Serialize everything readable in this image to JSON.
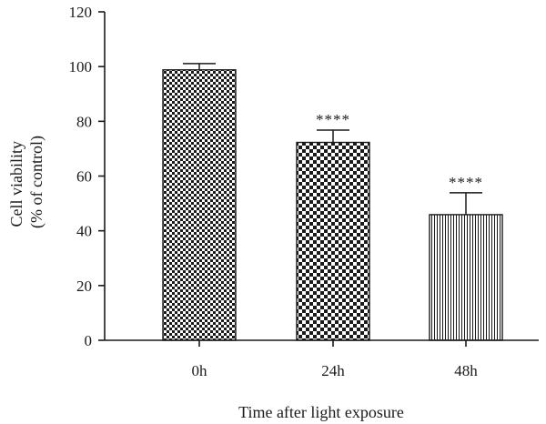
{
  "chart_data": {
    "type": "bar",
    "categories": [
      "0h",
      "24h",
      "48h"
    ],
    "values": [
      98.8,
      72.3,
      45.9
    ],
    "errors": [
      2.3,
      4.5,
      8.0
    ],
    "annotations": [
      "",
      "****",
      "****"
    ],
    "patterns": [
      "fine-checker",
      "coarse-checker",
      "vertical-lines"
    ],
    "xlabel": "Time after light exposure",
    "ylabel_lines": [
      "Cell viability",
      "(% of control)"
    ],
    "ylim": [
      0,
      120
    ],
    "yticks": [
      0,
      20,
      40,
      60,
      80,
      100,
      120
    ],
    "grid": false,
    "colors": {
      "bar_fill": "#1a1a1a",
      "axis": "#1a1a1a",
      "background": "#ffffff"
    }
  }
}
